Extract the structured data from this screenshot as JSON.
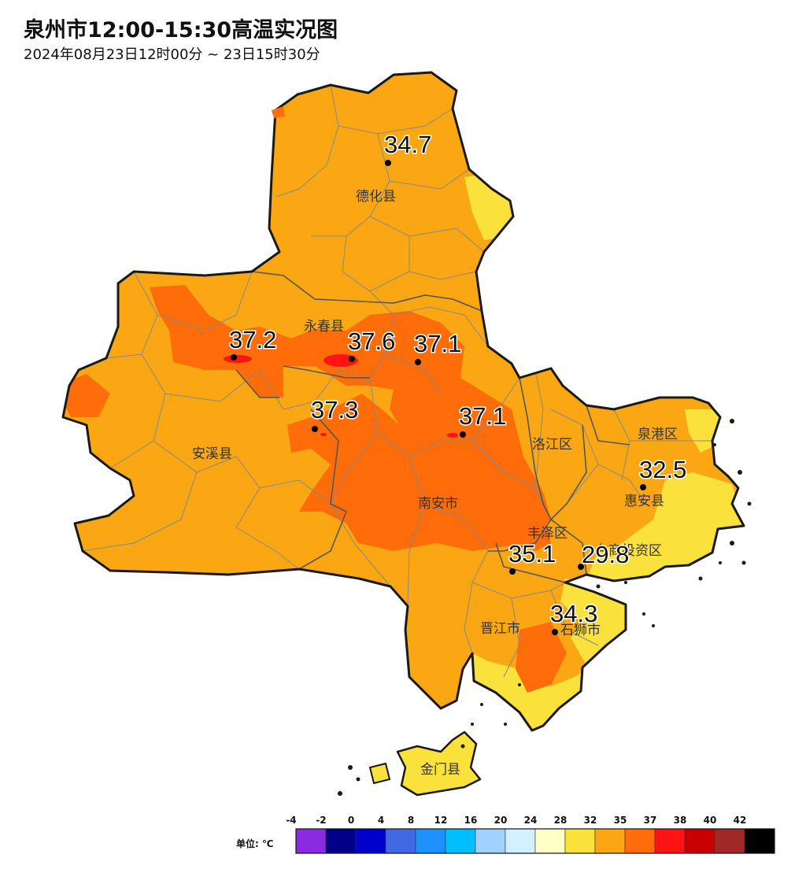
{
  "header": {
    "title": "泉州市12:00-15:30高温实况图",
    "subtitle": "2024年08月23日12时00分 ~ 23日15时30分"
  },
  "colors": {
    "land": "#FBA714",
    "hot": "#FF6D0A",
    "hotter": "#FF1414",
    "cool": "#FAE13C",
    "border": "#1a1a1a",
    "township": "#888888"
  },
  "counties": [
    {
      "id": "dehua",
      "name": "德化县"
    },
    {
      "id": "yongchun",
      "name": "永春县"
    },
    {
      "id": "anxi",
      "name": "安溪县"
    },
    {
      "id": "nanan",
      "name": "南安市"
    },
    {
      "id": "luojiang",
      "name": "洛江区"
    },
    {
      "id": "quangang",
      "name": "泉港区"
    },
    {
      "id": "huian",
      "name": "惠安县"
    },
    {
      "id": "fengze",
      "name": "丰泽区"
    },
    {
      "id": "taishang",
      "name": "台商投资区"
    },
    {
      "id": "jinjiang",
      "name": "晋江市"
    },
    {
      "id": "shishi",
      "name": "石狮市"
    },
    {
      "id": "jinmen",
      "name": "金门县"
    }
  ],
  "stations": [
    {
      "id": "dehua",
      "value": "34.7"
    },
    {
      "id": "anxi",
      "value": "37.2"
    },
    {
      "id": "yongchun",
      "value": "37.6"
    },
    {
      "id": "yongchun-e",
      "value": "37.1"
    },
    {
      "id": "anxi-e",
      "value": "37.3"
    },
    {
      "id": "nanan",
      "value": "37.1"
    },
    {
      "id": "huian",
      "value": "32.5"
    },
    {
      "id": "fengze",
      "value": "35.1"
    },
    {
      "id": "taishang",
      "value": "29.8"
    },
    {
      "id": "shishi",
      "value": "34.3"
    }
  ],
  "legend": {
    "unit_label": "单位: ℃",
    "ticks": [
      "-4",
      "-2",
      "0",
      "4",
      "8",
      "12",
      "16",
      "20",
      "24",
      "28",
      "32",
      "35",
      "37",
      "38",
      "40",
      "42"
    ],
    "colors": [
      "#8A2BE2",
      "#00008B",
      "#0000CD",
      "#4169E1",
      "#1E90FF",
      "#00BFFF",
      "#A0D2FF",
      "#D2F0FF",
      "#FFFFC8",
      "#FAE13C",
      "#FBA714",
      "#FF6D0A",
      "#FF1414",
      "#C80000",
      "#A02828",
      "#000000"
    ]
  }
}
